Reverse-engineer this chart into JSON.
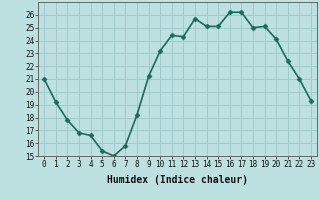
{
  "xlabel": "Humidex (Indice chaleur)",
  "x": [
    0,
    1,
    2,
    3,
    4,
    5,
    6,
    7,
    8,
    9,
    10,
    11,
    12,
    13,
    14,
    15,
    16,
    17,
    18,
    19,
    20,
    21,
    22,
    23
  ],
  "y": [
    21,
    19.2,
    17.8,
    16.8,
    16.6,
    15.4,
    15.0,
    15.8,
    18.2,
    21.2,
    23.2,
    24.4,
    24.3,
    25.7,
    25.1,
    25.1,
    26.2,
    26.2,
    25.0,
    25.1,
    24.1,
    22.4,
    21.0,
    19.3
  ],
  "line_color": "#1a6b5a",
  "marker": "D",
  "markersize": 2.5,
  "linewidth": 1.2,
  "bg_color": "#bde0e0",
  "grid_color": "#a0c8c8",
  "ylim": [
    15,
    27
  ],
  "yticks": [
    15,
    16,
    17,
    18,
    19,
    20,
    21,
    22,
    23,
    24,
    25,
    26
  ],
  "xticks": [
    0,
    1,
    2,
    3,
    4,
    5,
    6,
    7,
    8,
    9,
    10,
    11,
    12,
    13,
    14,
    15,
    16,
    17,
    18,
    19,
    20,
    21,
    22,
    23
  ],
  "tick_fontsize": 5.5,
  "label_fontsize": 7
}
